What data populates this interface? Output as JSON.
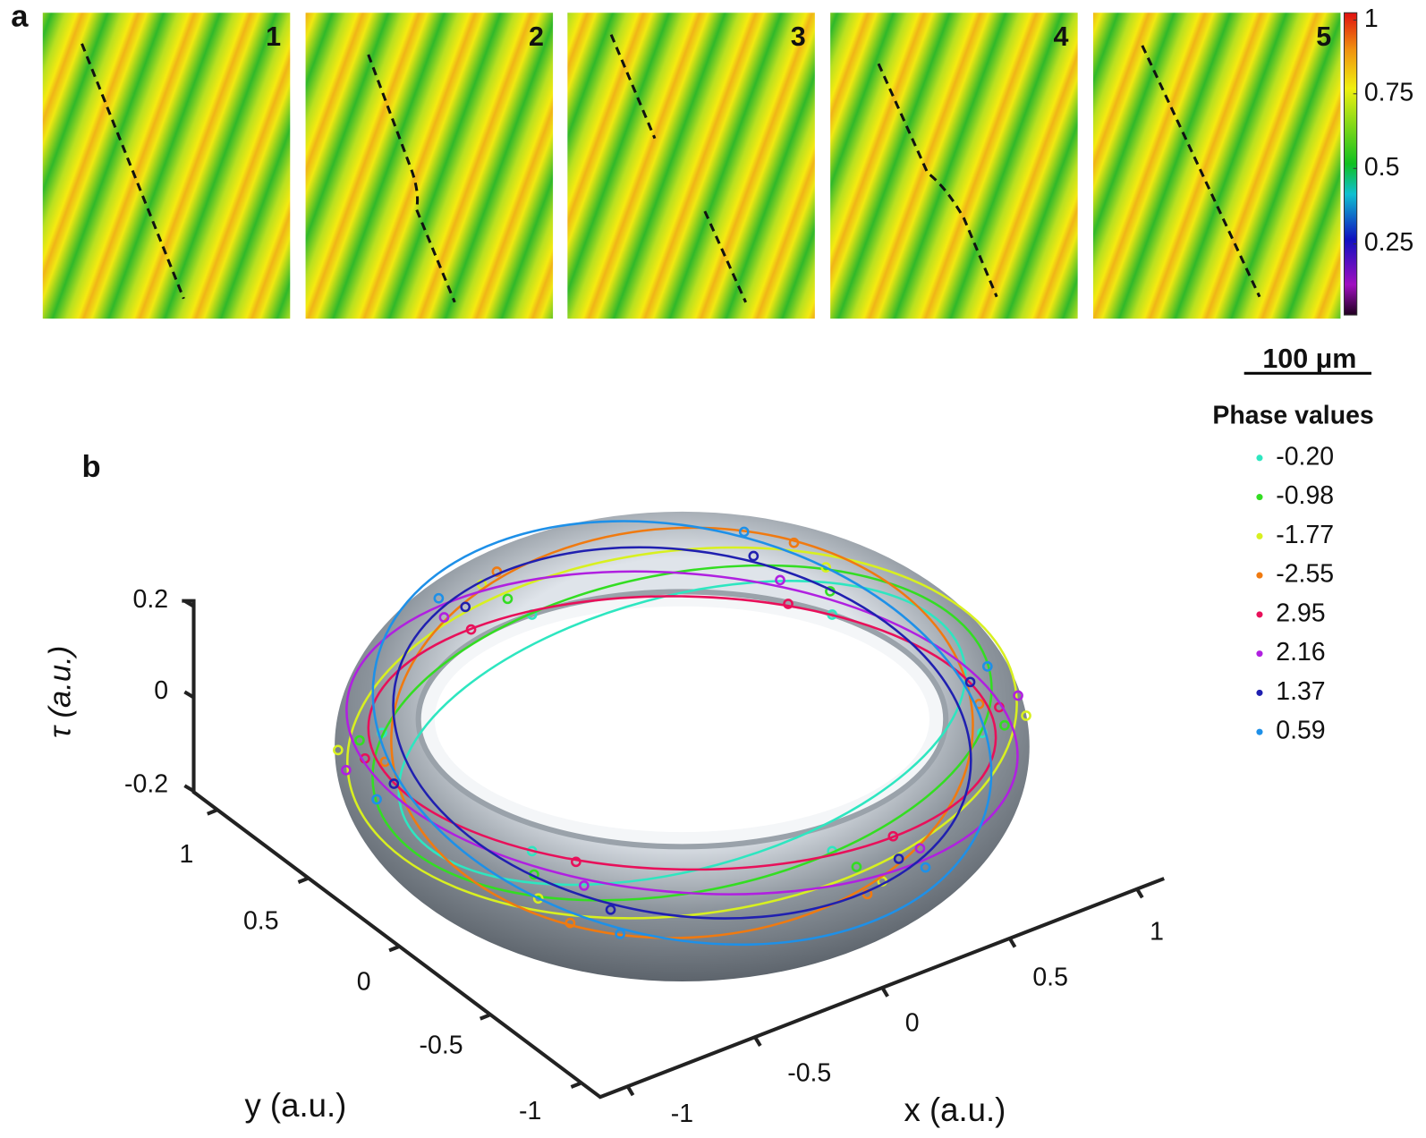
{
  "panel_a": {
    "label": "a",
    "images": [
      "1",
      "2",
      "3",
      "4",
      "5"
    ],
    "colorbar_ticks": [
      "1",
      "0.75",
      "0.5",
      "0.25"
    ],
    "scale_bar": "100 μm"
  },
  "panel_b": {
    "label": "b",
    "legend": {
      "title": "Phase values",
      "entries": [
        {
          "label": "-0.20",
          "color": "#2ee6c0"
        },
        {
          "label": "-0.98",
          "color": "#33dd22"
        },
        {
          "label": "-1.77",
          "color": "#d8f020"
        },
        {
          "label": "-2.55",
          "color": "#f07a10"
        },
        {
          "label": "2.95",
          "color": "#e8105a"
        },
        {
          "label": "2.16",
          "color": "#b020e0"
        },
        {
          "label": "1.37",
          "color": "#2020b0"
        },
        {
          "label": "0.59",
          "color": "#1e90e8"
        }
      ]
    },
    "tau_axis": {
      "label": "τ (a.u.)",
      "ticks": [
        "0.2",
        "0",
        "-0.2"
      ]
    },
    "y_axis": {
      "label": "y (a.u.)",
      "ticks": [
        "1",
        "0.5",
        "0",
        "-0.5",
        "-1"
      ]
    },
    "x_axis": {
      "label": "x (a.u.)",
      "ticks": [
        "-1",
        "-0.5",
        "0",
        "0.5",
        "1"
      ]
    }
  }
}
